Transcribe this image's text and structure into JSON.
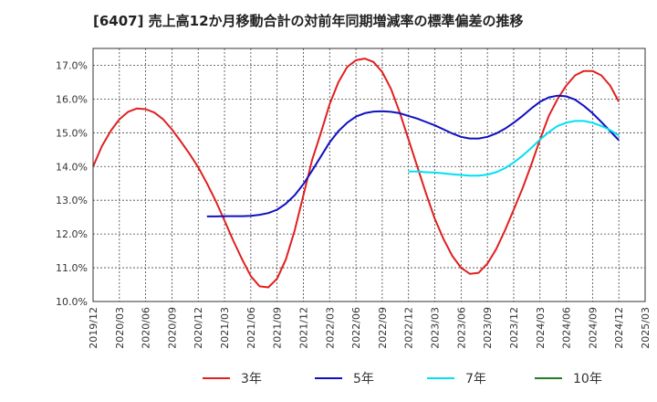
{
  "chart_data": {
    "type": "line",
    "title": "[6407]  売上高12か月移動合計の対前年同期増減率の標準偏差の推移",
    "xlabel": "",
    "ylabel": "",
    "ylim": [
      10.0,
      17.5
    ],
    "yticks": [
      "10.0%",
      "11.0%",
      "12.0%",
      "13.0%",
      "14.0%",
      "15.0%",
      "16.0%",
      "17.0%"
    ],
    "ytick_values": [
      10,
      11,
      12,
      13,
      14,
      15,
      16,
      17
    ],
    "x_tick_labels": [
      "2019/12",
      "2020/03",
      "2020/06",
      "2020/09",
      "2020/12",
      "2021/03",
      "2021/06",
      "2021/09",
      "2021/12",
      "2022/03",
      "2022/06",
      "2022/09",
      "2022/12",
      "2023/03",
      "2023/06",
      "2023/09",
      "2023/12",
      "2024/03",
      "2024/06",
      "2024/09",
      "2024/12",
      "2025/03"
    ],
    "grid": true,
    "legend_position": "bottom",
    "series": [
      {
        "name": "3年",
        "color": "#e02020",
        "points": [
          [
            "2019/12",
            14.0
          ],
          [
            "2020/01",
            14.6
          ],
          [
            "2020/02",
            15.05
          ],
          [
            "2020/03",
            15.4
          ],
          [
            "2020/04",
            15.62
          ],
          [
            "2020/05",
            15.72
          ],
          [
            "2020/06",
            15.7
          ],
          [
            "2020/07",
            15.6
          ],
          [
            "2020/08",
            15.4
          ],
          [
            "2020/09",
            15.1
          ],
          [
            "2020/10",
            14.75
          ],
          [
            "2020/11",
            14.38
          ],
          [
            "2020/12",
            13.98
          ],
          [
            "2021/01",
            13.5
          ],
          [
            "2021/02",
            12.98
          ],
          [
            "2021/03",
            12.4
          ],
          [
            "2021/04",
            11.8
          ],
          [
            "2021/05",
            11.25
          ],
          [
            "2021/06",
            10.75
          ],
          [
            "2021/07",
            10.45
          ],
          [
            "2021/08",
            10.42
          ],
          [
            "2021/09",
            10.68
          ],
          [
            "2021/10",
            11.25
          ],
          [
            "2021/11",
            12.1
          ],
          [
            "2021/12",
            13.15
          ],
          [
            "2022/01",
            14.2
          ],
          [
            "2022/02",
            15.0
          ],
          [
            "2022/03",
            15.85
          ],
          [
            "2022/04",
            16.5
          ],
          [
            "2022/05",
            16.95
          ],
          [
            "2022/06",
            17.15
          ],
          [
            "2022/07",
            17.2
          ],
          [
            "2022/08",
            17.1
          ],
          [
            "2022/09",
            16.8
          ],
          [
            "2022/10",
            16.3
          ],
          [
            "2022/11",
            15.6
          ],
          [
            "2022/12",
            14.8
          ],
          [
            "2023/01",
            14.0
          ],
          [
            "2023/02",
            13.2
          ],
          [
            "2023/03",
            12.45
          ],
          [
            "2023/04",
            11.85
          ],
          [
            "2023/05",
            11.35
          ],
          [
            "2023/06",
            11.0
          ],
          [
            "2023/07",
            10.82
          ],
          [
            "2023/08",
            10.85
          ],
          [
            "2023/09",
            11.12
          ],
          [
            "2023/10",
            11.55
          ],
          [
            "2023/11",
            12.1
          ],
          [
            "2023/12",
            12.72
          ],
          [
            "2024/01",
            13.35
          ],
          [
            "2024/02",
            14.05
          ],
          [
            "2024/03",
            14.8
          ],
          [
            "2024/04",
            15.5
          ],
          [
            "2024/05",
            16.0
          ],
          [
            "2024/06",
            16.4
          ],
          [
            "2024/07",
            16.7
          ],
          [
            "2024/08",
            16.83
          ],
          [
            "2024/09",
            16.83
          ],
          [
            "2024/10",
            16.7
          ],
          [
            "2024/11",
            16.4
          ],
          [
            "2024/12",
            15.92
          ]
        ]
      },
      {
        "name": "5年",
        "color": "#1010c0",
        "points": [
          [
            "2021/01",
            12.52
          ],
          [
            "2021/02",
            12.52
          ],
          [
            "2021/03",
            12.53
          ],
          [
            "2021/04",
            12.53
          ],
          [
            "2021/05",
            12.53
          ],
          [
            "2021/06",
            12.54
          ],
          [
            "2021/07",
            12.57
          ],
          [
            "2021/08",
            12.62
          ],
          [
            "2021/09",
            12.72
          ],
          [
            "2021/10",
            12.9
          ],
          [
            "2021/11",
            13.15
          ],
          [
            "2021/12",
            13.48
          ],
          [
            "2022/01",
            13.88
          ],
          [
            "2022/02",
            14.3
          ],
          [
            "2022/03",
            14.72
          ],
          [
            "2022/04",
            15.05
          ],
          [
            "2022/05",
            15.3
          ],
          [
            "2022/06",
            15.48
          ],
          [
            "2022/07",
            15.58
          ],
          [
            "2022/08",
            15.63
          ],
          [
            "2022/09",
            15.64
          ],
          [
            "2022/10",
            15.62
          ],
          [
            "2022/11",
            15.58
          ],
          [
            "2022/12",
            15.5
          ],
          [
            "2023/01",
            15.42
          ],
          [
            "2023/02",
            15.32
          ],
          [
            "2023/03",
            15.22
          ],
          [
            "2023/04",
            15.1
          ],
          [
            "2023/05",
            14.98
          ],
          [
            "2023/06",
            14.88
          ],
          [
            "2023/07",
            14.83
          ],
          [
            "2023/08",
            14.83
          ],
          [
            "2023/09",
            14.88
          ],
          [
            "2023/10",
            14.98
          ],
          [
            "2023/11",
            15.12
          ],
          [
            "2023/12",
            15.3
          ],
          [
            "2024/01",
            15.5
          ],
          [
            "2024/02",
            15.72
          ],
          [
            "2024/03",
            15.92
          ],
          [
            "2024/04",
            16.05
          ],
          [
            "2024/05",
            16.1
          ],
          [
            "2024/06",
            16.08
          ],
          [
            "2024/07",
            15.98
          ],
          [
            "2024/08",
            15.8
          ],
          [
            "2024/09",
            15.58
          ],
          [
            "2024/10",
            15.32
          ],
          [
            "2024/11",
            15.05
          ],
          [
            "2024/12",
            14.78
          ]
        ]
      },
      {
        "name": "7年",
        "color": "#00e0f0",
        "points": [
          [
            "2022/12",
            13.85
          ],
          [
            "2023/01",
            13.85
          ],
          [
            "2023/02",
            13.83
          ],
          [
            "2023/03",
            13.82
          ],
          [
            "2023/04",
            13.8
          ],
          [
            "2023/05",
            13.77
          ],
          [
            "2023/06",
            13.75
          ],
          [
            "2023/07",
            13.73
          ],
          [
            "2023/08",
            13.73
          ],
          [
            "2023/09",
            13.76
          ],
          [
            "2023/10",
            13.83
          ],
          [
            "2023/11",
            13.95
          ],
          [
            "2023/12",
            14.12
          ],
          [
            "2024/01",
            14.32
          ],
          [
            "2024/02",
            14.55
          ],
          [
            "2024/03",
            14.8
          ],
          [
            "2024/04",
            15.02
          ],
          [
            "2024/05",
            15.2
          ],
          [
            "2024/06",
            15.3
          ],
          [
            "2024/07",
            15.35
          ],
          [
            "2024/08",
            15.35
          ],
          [
            "2024/09",
            15.3
          ],
          [
            "2024/10",
            15.2
          ],
          [
            "2024/11",
            15.08
          ],
          [
            "2024/12",
            14.92
          ]
        ]
      },
      {
        "name": "10年",
        "color": "#208020",
        "points": []
      }
    ]
  }
}
